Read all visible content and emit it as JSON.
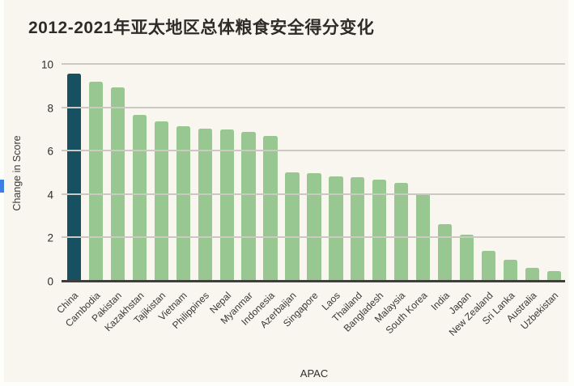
{
  "chart": {
    "title": "2012-2021年亚太地区总体粮食安全得分变化",
    "ylabel": "Change in Score",
    "xlabel": "APAC"
  },
  "chart_data": {
    "type": "bar",
    "title": "2012-2021年亚太地区总体粮食安全得分变化",
    "xlabel": "APAC",
    "ylabel": "Change in Score",
    "ylim": [
      0,
      10
    ],
    "yticks": [
      0,
      2,
      4,
      6,
      8,
      10
    ],
    "grid": true,
    "legend": false,
    "categories": [
      "China",
      "Cambodia",
      "Pakistan",
      "Kazakhstan",
      "Tajikistan",
      "Vietnam",
      "Philippines",
      "Nepal",
      "Myanmar",
      "Indonesia",
      "Azerbaijan",
      "Singapore",
      "Laos",
      "Thailand",
      "Bangladesh",
      "Malaysia",
      "South Korea",
      "India",
      "Japan",
      "New Zealand",
      "Sri Lanka",
      "Australia",
      "Uzbekistan"
    ],
    "values": [
      9.6,
      9.2,
      8.95,
      7.7,
      7.4,
      7.15,
      7.05,
      7.0,
      6.9,
      6.7,
      5.05,
      5.0,
      4.85,
      4.8,
      4.7,
      4.55,
      4.05,
      2.65,
      2.15,
      1.4,
      1.0,
      0.65,
      0.5
    ],
    "bar_color": "#98c791",
    "highlight_index": 0,
    "highlight_color": "#175061",
    "background_color": "#f9f6ef",
    "gridline_color": "#ccc9c2",
    "baseline_color": "#403e3b"
  }
}
